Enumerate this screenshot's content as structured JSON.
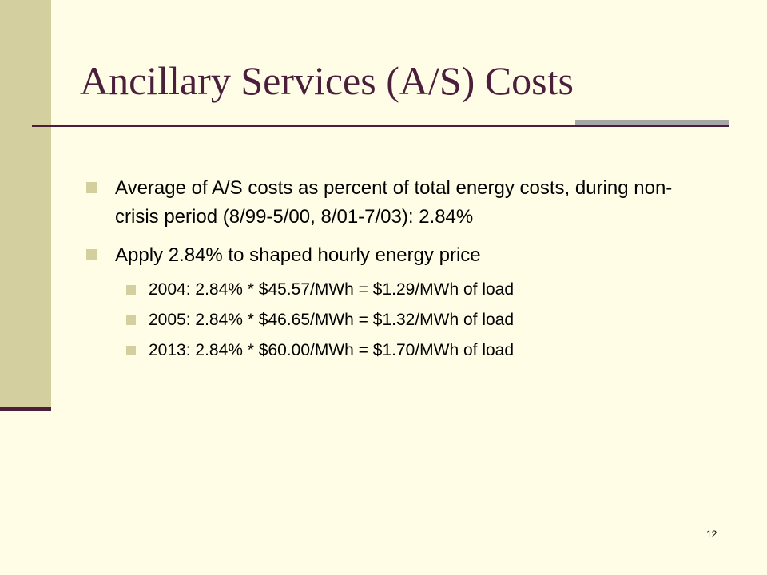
{
  "title": "Ancillary Services (A/S) Costs",
  "bullets": [
    {
      "text": "Average of A/S costs as percent of total energy costs, during non-crisis period (8/99-5/00, 8/01-7/03): 2.84%",
      "sub": []
    },
    {
      "text": "Apply 2.84% to shaped hourly energy price",
      "sub": [
        "2004:  2.84% * $45.57/MWh = $1.29/MWh of load",
        "2005:  2.84% * $46.65/MWh = $1.32/MWh of load",
        "2013:  2.84% * $60.00/MWh = $1.70/MWh of load"
      ]
    }
  ],
  "page_number": "12"
}
